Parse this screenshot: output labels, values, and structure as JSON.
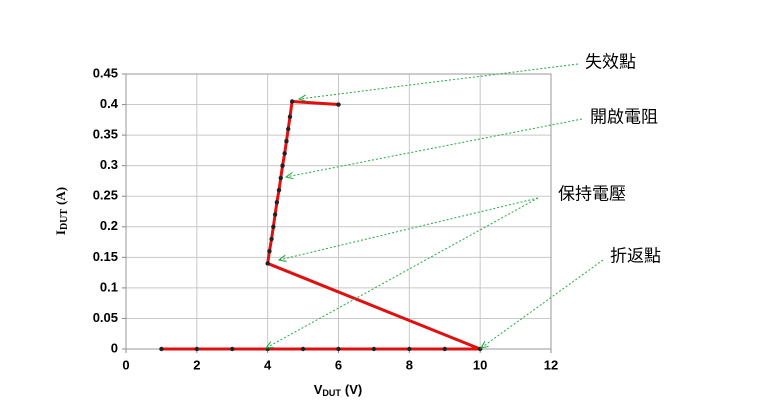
{
  "chart_data": {
    "type": "line",
    "x_label": {
      "main": "V",
      "sub": "DUT",
      "unit": "(V)"
    },
    "y_label": {
      "main": "I",
      "sub": "DUT",
      "unit": "(A)"
    },
    "series": [
      {
        "color": "#e01010",
        "marker_color": "#222222",
        "x": [
          1,
          2,
          3,
          4,
          5,
          6,
          7,
          8,
          9,
          10,
          4,
          4.05,
          4.11,
          4.16,
          4.21,
          4.26,
          4.32,
          4.37,
          4.42,
          4.48,
          4.53,
          4.58,
          4.63,
          4.69,
          6
        ],
        "values": [
          0,
          0,
          0,
          0,
          0,
          0,
          0,
          0,
          0,
          0,
          0.14,
          0.16,
          0.18,
          0.2,
          0.22,
          0.24,
          0.26,
          0.28,
          0.3,
          0.32,
          0.34,
          0.36,
          0.38,
          0.405,
          0.4
        ]
      }
    ],
    "xlim": [
      0,
      12
    ],
    "xticks": [
      0,
      2,
      4,
      6,
      8,
      10,
      12
    ],
    "ylim": [
      0,
      0.45
    ],
    "yticks": [
      0,
      0.05,
      0.1,
      0.15,
      0.2,
      0.25,
      0.3,
      0.35,
      0.4,
      0.45
    ],
    "grid": true,
    "annotations": [
      "失效點",
      "開啟電阻",
      "保持電壓",
      "折返點"
    ]
  }
}
